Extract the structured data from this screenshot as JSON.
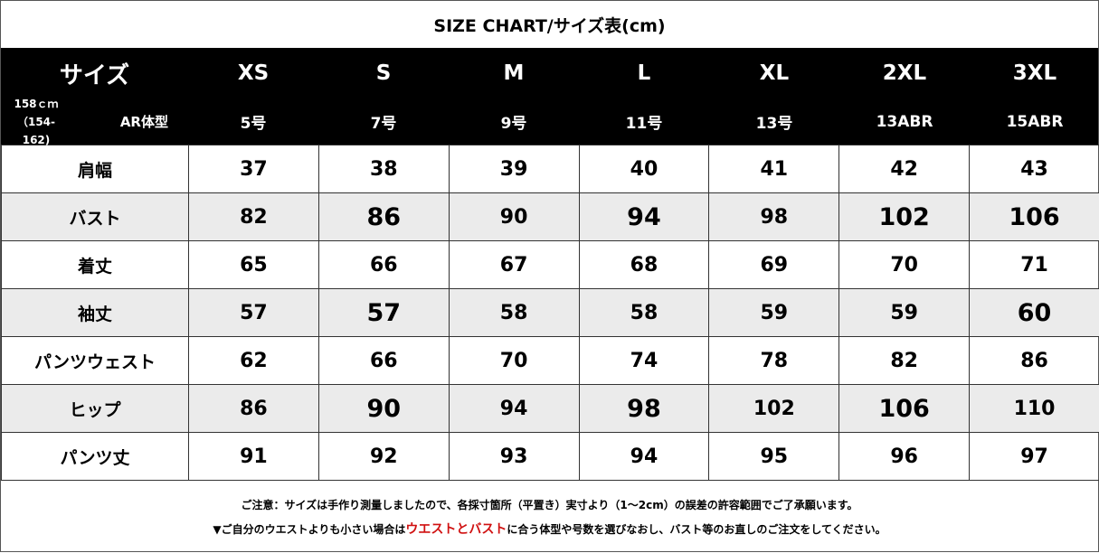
{
  "title": "SIZE CHART/サイズ表(cm)",
  "header": {
    "label": "サイズ",
    "height_note": "158ｃｍ（154-162)",
    "body_type": "AR体型",
    "sizes": [
      "XS",
      "S",
      "M",
      "L",
      "XL",
      "2XL",
      "3XL"
    ],
    "numbers": [
      "5号",
      "7号",
      "9号",
      "11号",
      "13号",
      "13ABR",
      "15ABR"
    ]
  },
  "rows": [
    {
      "label": "肩幅",
      "values": [
        "37",
        "38",
        "39",
        "40",
        "41",
        "42",
        "43"
      ]
    },
    {
      "label": "バスト",
      "values": [
        "82",
        "86",
        "90",
        "94",
        "98",
        "102",
        "106"
      ]
    },
    {
      "label": "着丈",
      "values": [
        "65",
        "66",
        "67",
        "68",
        "69",
        "70",
        "71"
      ]
    },
    {
      "label": "袖丈",
      "values": [
        "57",
        "57",
        "58",
        "58",
        "59",
        "59",
        "60"
      ]
    },
    {
      "label": "パンツウェスト",
      "values": [
        "62",
        "66",
        "70",
        "74",
        "78",
        "82",
        "86"
      ]
    },
    {
      "label": "ヒップ",
      "values": [
        "86",
        "90",
        "94",
        "98",
        "102",
        "106",
        "110"
      ]
    },
    {
      "label": "パンツ丈",
      "values": [
        "91",
        "92",
        "93",
        "94",
        "95",
        "96",
        "97"
      ]
    }
  ],
  "footer": {
    "note1": "ご注意：サイズは手作り測量しましたので、各採寸箇所（平置き）実寸より（1～2cm）の誤差の許容範囲でご了承願います。",
    "note2_pre": "▼ご自分のウエストよりも小さい場合は",
    "note2_red": "ウエストとバスト",
    "note2_post": "に合う体型や号数を選びなおし、バスト等のお直しのご注文をしてください。"
  },
  "colors": {
    "header_bg": "#000000",
    "alt_row": "#ebebeb",
    "highlight": "#d01010"
  }
}
